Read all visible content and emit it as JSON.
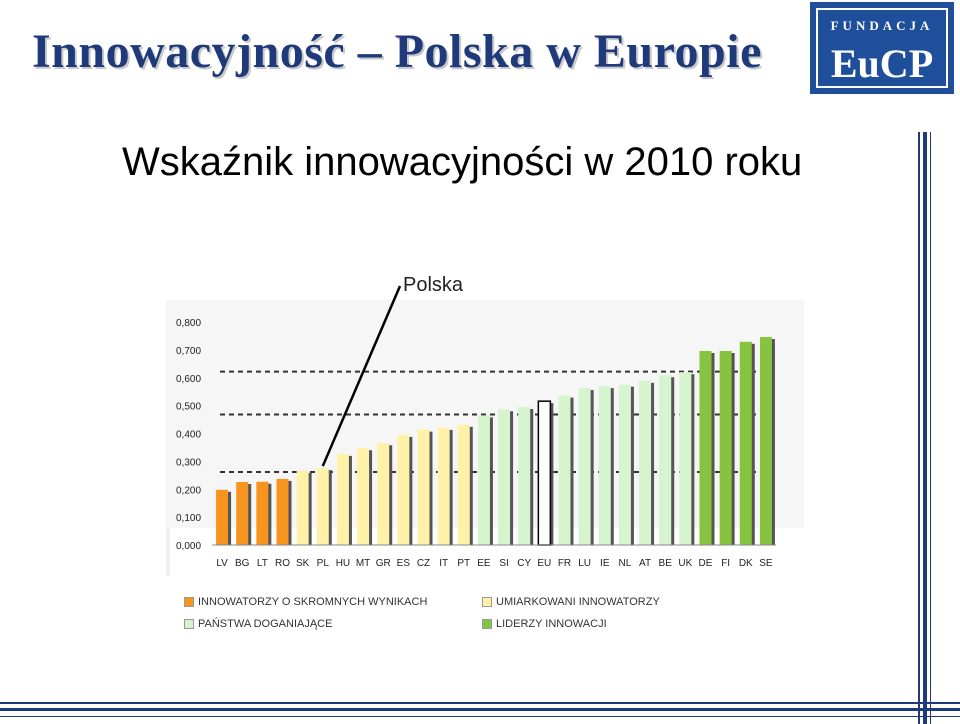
{
  "slide": {
    "title": "Innowacyjność – Polska w Europie",
    "subtitle": "Wskaźnik innowacyjności w 2010 roku"
  },
  "logo": {
    "top_text": "FUNDACJA",
    "main_text": "EuCP"
  },
  "chart_data": {
    "type": "bar",
    "title": "",
    "xlabel": "",
    "ylabel": "",
    "ylim": [
      0,
      0.8
    ],
    "y_ticks": [
      "0,000",
      "0,100",
      "0,200",
      "0,300",
      "0,400",
      "0,500",
      "0,600",
      "0,700",
      "0,800"
    ],
    "categories": [
      "LV",
      "BG",
      "LT",
      "RO",
      "SK",
      "PL",
      "HU",
      "MT",
      "GR",
      "ES",
      "CZ",
      "IT",
      "PT",
      "EE",
      "SI",
      "CY",
      "EU",
      "FR",
      "LU",
      "IE",
      "NL",
      "AT",
      "BE",
      "UK",
      "DE",
      "FI",
      "DK",
      "SE"
    ],
    "values": [
      0.198,
      0.226,
      0.227,
      0.237,
      0.266,
      0.276,
      0.327,
      0.347,
      0.365,
      0.395,
      0.414,
      0.42,
      0.431,
      0.465,
      0.487,
      0.495,
      0.516,
      0.536,
      0.563,
      0.57,
      0.575,
      0.589,
      0.609,
      0.62,
      0.696,
      0.696,
      0.729,
      0.746
    ],
    "groups": [
      "modest",
      "modest",
      "modest",
      "modest",
      "moderate",
      "moderate",
      "moderate",
      "moderate",
      "moderate",
      "moderate",
      "moderate",
      "moderate",
      "moderate",
      "follower",
      "follower",
      "follower",
      "eu",
      "follower",
      "follower",
      "follower",
      "follower",
      "follower",
      "follower",
      "follower",
      "leader",
      "leader",
      "leader",
      "leader"
    ],
    "group_colors": {
      "modest": "#f7941d",
      "moderate": "#fff2a8",
      "follower": "#d6f5cf",
      "eu": "#ffffff",
      "leader": "#86c440"
    },
    "threshold_lines": [
      0.262,
      0.468,
      0.622
    ],
    "grid": false,
    "annotation": {
      "text": "Polska",
      "target": "PL"
    },
    "legend_position": "bottom",
    "legend": [
      {
        "label": "INNOWATORZY O SKROMNYCH WYNIKACH",
        "color": "#f7941d"
      },
      {
        "label": "UMIARKOWANI INNOWATORZY",
        "color": "#fff2a8"
      },
      {
        "label": "PAŃSTWA DOGANIAJĄCE",
        "color": "#d6f5cf"
      },
      {
        "label": "LIDERZY INNOWACJI",
        "color": "#86c440"
      }
    ]
  }
}
